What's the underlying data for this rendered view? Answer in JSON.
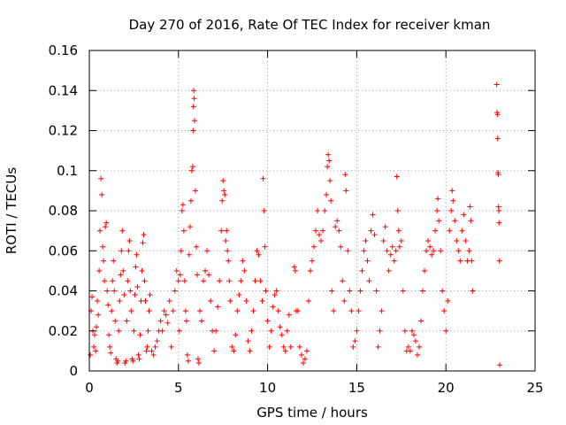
{
  "chart_data": {
    "type": "scatter",
    "title": "Day 270 of 2016, Rate Of TEC Index for receiver kman",
    "xlabel": "GPS time / hours",
    "ylabel": "ROTI / TECUs",
    "xlim": [
      0,
      25
    ],
    "ylim": [
      0,
      0.16
    ],
    "xticks": [
      0,
      5,
      10,
      15,
      20,
      25
    ],
    "xtick_labels": [
      "0",
      "5",
      "10",
      "15",
      "20",
      "25"
    ],
    "yticks": [
      0,
      0.02,
      0.04,
      0.06,
      0.08,
      0.1,
      0.12,
      0.14,
      0.16
    ],
    "ytick_labels": [
      "0",
      "0.02",
      "0.04",
      "0.06",
      "0.08",
      "0.1",
      "0.12",
      "0.14",
      "0.16"
    ],
    "grid": true,
    "marker": "plus",
    "color": "#ff0000",
    "series": [
      {
        "name": "ROTI",
        "points": [
          [
            0.05,
            0.008
          ],
          [
            0.1,
            0.03
          ],
          [
            0.15,
            0.037
          ],
          [
            0.2,
            0.02
          ],
          [
            0.25,
            0.012
          ],
          [
            0.3,
            0.018
          ],
          [
            0.35,
            0.01
          ],
          [
            0.4,
            0.022
          ],
          [
            0.45,
            0.035
          ],
          [
            0.5,
            0.028
          ],
          [
            0.55,
            0.05
          ],
          [
            0.6,
            0.07
          ],
          [
            0.65,
            0.096
          ],
          [
            0.7,
            0.088
          ],
          [
            0.75,
            0.062
          ],
          [
            0.8,
            0.055
          ],
          [
            0.85,
            0.045
          ],
          [
            0.9,
            0.072
          ],
          [
            0.95,
            0.074
          ],
          [
            1.0,
            0.04
          ],
          [
            1.05,
            0.033
          ],
          [
            1.1,
            0.018
          ],
          [
            1.15,
            0.012
          ],
          [
            1.2,
            0.009
          ],
          [
            1.25,
            0.03
          ],
          [
            1.3,
            0.045
          ],
          [
            1.35,
            0.055
          ],
          [
            1.4,
            0.04
          ],
          [
            1.45,
            0.025
          ],
          [
            1.5,
            0.006
          ],
          [
            1.55,
            0.004
          ],
          [
            1.6,
            0.005
          ],
          [
            1.65,
            0.02
          ],
          [
            1.7,
            0.035
          ],
          [
            1.75,
            0.048
          ],
          [
            1.8,
            0.06
          ],
          [
            1.85,
            0.07
          ],
          [
            1.9,
            0.05
          ],
          [
            1.95,
            0.038
          ],
          [
            2.0,
            0.004
          ],
          [
            2.05,
            0.005
          ],
          [
            2.1,
            0.025
          ],
          [
            2.15,
            0.045
          ],
          [
            2.2,
            0.06
          ],
          [
            2.25,
            0.065
          ],
          [
            2.3,
            0.04
          ],
          [
            2.35,
            0.03
          ],
          [
            2.4,
            0.006
          ],
          [
            2.45,
            0.005
          ],
          [
            2.5,
            0.02
          ],
          [
            2.55,
            0.038
          ],
          [
            2.6,
            0.052
          ],
          [
            2.65,
            0.058
          ],
          [
            2.7,
            0.042
          ],
          [
            2.75,
            0.008
          ],
          [
            2.8,
            0.006
          ],
          [
            2.85,
            0.018
          ],
          [
            2.9,
            0.035
          ],
          [
            2.95,
            0.05
          ],
          [
            3.0,
            0.064
          ],
          [
            3.05,
            0.068
          ],
          [
            3.1,
            0.045
          ],
          [
            3.15,
            0.035
          ],
          [
            3.2,
            0.01
          ],
          [
            3.25,
            0.012
          ],
          [
            3.3,
            0.02
          ],
          [
            3.35,
            0.03
          ],
          [
            3.4,
            0.038
          ],
          [
            3.5,
            0.01
          ],
          [
            3.6,
            0.008
          ],
          [
            3.7,
            0.012
          ],
          [
            3.8,
            0.015
          ],
          [
            3.9,
            0.02
          ],
          [
            4.0,
            0.025
          ],
          [
            4.1,
            0.02
          ],
          [
            4.2,
            0.03
          ],
          [
            4.3,
            0.028
          ],
          [
            4.4,
            0.024
          ],
          [
            4.5,
            0.035
          ],
          [
            4.6,
            0.012
          ],
          [
            4.7,
            0.03
          ],
          [
            4.8,
            0.04
          ],
          [
            4.9,
            0.05
          ],
          [
            5.0,
            0.045
          ],
          [
            5.05,
            0.02
          ],
          [
            5.1,
            0.048
          ],
          [
            5.15,
            0.06
          ],
          [
            5.2,
            0.08
          ],
          [
            5.25,
            0.083
          ],
          [
            5.3,
            0.07
          ],
          [
            5.35,
            0.045
          ],
          [
            5.4,
            0.03
          ],
          [
            5.45,
            0.025
          ],
          [
            5.5,
            0.008
          ],
          [
            5.55,
            0.005
          ],
          [
            5.6,
            0.058
          ],
          [
            5.65,
            0.072
          ],
          [
            5.7,
            0.085
          ],
          [
            5.75,
            0.1
          ],
          [
            5.8,
            0.102
          ],
          [
            5.82,
            0.12
          ],
          [
            5.84,
            0.132
          ],
          [
            5.86,
            0.14
          ],
          [
            5.88,
            0.136
          ],
          [
            5.9,
            0.125
          ],
          [
            5.95,
            0.09
          ],
          [
            6.0,
            0.062
          ],
          [
            6.05,
            0.048
          ],
          [
            6.1,
            0.006
          ],
          [
            6.15,
            0.004
          ],
          [
            6.2,
            0.03
          ],
          [
            6.3,
            0.025
          ],
          [
            6.4,
            0.045
          ],
          [
            6.5,
            0.05
          ],
          [
            6.6,
            0.06
          ],
          [
            6.7,
            0.048
          ],
          [
            6.8,
            0.035
          ],
          [
            6.9,
            0.02
          ],
          [
            7.0,
            0.01
          ],
          [
            7.1,
            0.02
          ],
          [
            7.2,
            0.032
          ],
          [
            7.3,
            0.045
          ],
          [
            7.4,
            0.07
          ],
          [
            7.45,
            0.085
          ],
          [
            7.5,
            0.095
          ],
          [
            7.55,
            0.09
          ],
          [
            7.6,
            0.088
          ],
          [
            7.65,
            0.065
          ],
          [
            7.7,
            0.07
          ],
          [
            7.75,
            0.06
          ],
          [
            7.8,
            0.055
          ],
          [
            7.85,
            0.045
          ],
          [
            7.9,
            0.035
          ],
          [
            8.0,
            0.012
          ],
          [
            8.1,
            0.01
          ],
          [
            8.2,
            0.018
          ],
          [
            8.3,
            0.03
          ],
          [
            8.4,
            0.038
          ],
          [
            8.5,
            0.045
          ],
          [
            8.6,
            0.055
          ],
          [
            8.7,
            0.05
          ],
          [
            8.8,
            0.035
          ],
          [
            8.9,
            0.015
          ],
          [
            9.0,
            0.01
          ],
          [
            9.1,
            0.02
          ],
          [
            9.2,
            0.03
          ],
          [
            9.3,
            0.045
          ],
          [
            9.4,
            0.06
          ],
          [
            9.5,
            0.058
          ],
          [
            9.6,
            0.045
          ],
          [
            9.7,
            0.035
          ],
          [
            9.75,
            0.096
          ],
          [
            9.8,
            0.08
          ],
          [
            9.85,
            0.062
          ],
          [
            9.9,
            0.04
          ],
          [
            10.0,
            0.025
          ],
          [
            10.1,
            0.012
          ],
          [
            10.2,
            0.02
          ],
          [
            10.3,
            0.032
          ],
          [
            10.4,
            0.038
          ],
          [
            10.5,
            0.04
          ],
          [
            10.6,
            0.03
          ],
          [
            10.7,
            0.022
          ],
          [
            10.8,
            0.018
          ],
          [
            10.9,
            0.012
          ],
          [
            11.0,
            0.01
          ],
          [
            11.1,
            0.02
          ],
          [
            11.2,
            0.028
          ],
          [
            11.3,
            0.012
          ],
          [
            11.5,
            0.052
          ],
          [
            11.55,
            0.05
          ],
          [
            11.6,
            0.03
          ],
          [
            11.7,
            0.03
          ],
          [
            11.8,
            0.012
          ],
          [
            11.9,
            0.008
          ],
          [
            12.0,
            0.004
          ],
          [
            12.1,
            0.006
          ],
          [
            12.2,
            0.01
          ],
          [
            12.3,
            0.035
          ],
          [
            12.4,
            0.05
          ],
          [
            12.5,
            0.055
          ],
          [
            12.6,
            0.062
          ],
          [
            12.7,
            0.07
          ],
          [
            12.8,
            0.08
          ],
          [
            12.9,
            0.068
          ],
          [
            13.0,
            0.065
          ],
          [
            13.1,
            0.07
          ],
          [
            13.2,
            0.08
          ],
          [
            13.3,
            0.088
          ],
          [
            13.35,
            0.102
          ],
          [
            13.4,
            0.108
          ],
          [
            13.45,
            0.105
          ],
          [
            13.5,
            0.095
          ],
          [
            13.55,
            0.085
          ],
          [
            13.6,
            0.04
          ],
          [
            13.7,
            0.03
          ],
          [
            13.8,
            0.072
          ],
          [
            13.9,
            0.075
          ],
          [
            14.0,
            0.07
          ],
          [
            14.1,
            0.062
          ],
          [
            14.2,
            0.045
          ],
          [
            14.3,
            0.035
          ],
          [
            14.35,
            0.098
          ],
          [
            14.4,
            0.09
          ],
          [
            14.5,
            0.06
          ],
          [
            14.6,
            0.04
          ],
          [
            14.7,
            0.03
          ],
          [
            14.8,
            0.012
          ],
          [
            14.9,
            0.015
          ],
          [
            15.0,
            0.02
          ],
          [
            15.1,
            0.03
          ],
          [
            15.2,
            0.04
          ],
          [
            15.3,
            0.05
          ],
          [
            15.4,
            0.06
          ],
          [
            15.5,
            0.065
          ],
          [
            15.6,
            0.055
          ],
          [
            15.7,
            0.045
          ],
          [
            15.8,
            0.07
          ],
          [
            15.9,
            0.078
          ],
          [
            16.0,
            0.068
          ],
          [
            16.1,
            0.04
          ],
          [
            16.2,
            0.012
          ],
          [
            16.3,
            0.02
          ],
          [
            16.4,
            0.03
          ],
          [
            16.5,
            0.065
          ],
          [
            16.6,
            0.072
          ],
          [
            16.7,
            0.06
          ],
          [
            16.8,
            0.05
          ],
          [
            16.9,
            0.058
          ],
          [
            17.0,
            0.062
          ],
          [
            17.1,
            0.055
          ],
          [
            17.2,
            0.06
          ],
          [
            17.25,
            0.097
          ],
          [
            17.3,
            0.08
          ],
          [
            17.35,
            0.07
          ],
          [
            17.4,
            0.062
          ],
          [
            17.5,
            0.065
          ],
          [
            17.6,
            0.04
          ],
          [
            17.7,
            0.02
          ],
          [
            17.8,
            0.01
          ],
          [
            17.9,
            0.012
          ],
          [
            18.0,
            0.01
          ],
          [
            18.1,
            0.02
          ],
          [
            18.2,
            0.018
          ],
          [
            18.3,
            0.015
          ],
          [
            18.4,
            0.008
          ],
          [
            18.5,
            0.012
          ],
          [
            18.6,
            0.025
          ],
          [
            18.7,
            0.04
          ],
          [
            18.8,
            0.05
          ],
          [
            18.9,
            0.06
          ],
          [
            19.0,
            0.065
          ],
          [
            19.1,
            0.062
          ],
          [
            19.2,
            0.058
          ],
          [
            19.3,
            0.06
          ],
          [
            19.4,
            0.07
          ],
          [
            19.5,
            0.08
          ],
          [
            19.55,
            0.086
          ],
          [
            19.6,
            0.075
          ],
          [
            19.7,
            0.06
          ],
          [
            19.8,
            0.04
          ],
          [
            19.9,
            0.03
          ],
          [
            20.0,
            0.02
          ],
          [
            20.1,
            0.035
          ],
          [
            20.2,
            0.07
          ],
          [
            20.3,
            0.08
          ],
          [
            20.35,
            0.09
          ],
          [
            20.4,
            0.085
          ],
          [
            20.5,
            0.075
          ],
          [
            20.6,
            0.065
          ],
          [
            20.7,
            0.06
          ],
          [
            20.8,
            0.055
          ],
          [
            20.9,
            0.07
          ],
          [
            21.0,
            0.078
          ],
          [
            21.1,
            0.065
          ],
          [
            21.2,
            0.055
          ],
          [
            21.3,
            0.06
          ],
          [
            21.35,
            0.082
          ],
          [
            21.4,
            0.075
          ],
          [
            21.45,
            0.055
          ],
          [
            21.5,
            0.04
          ],
          [
            22.85,
            0.143
          ],
          [
            22.87,
            0.129
          ],
          [
            22.89,
            0.128
          ],
          [
            22.9,
            0.116
          ],
          [
            22.92,
            0.099
          ],
          [
            22.94,
            0.098
          ],
          [
            22.95,
            0.082
          ],
          [
            22.97,
            0.08
          ],
          [
            22.98,
            0.074
          ],
          [
            23.0,
            0.055
          ],
          [
            23.02,
            0.003
          ]
        ]
      }
    ]
  }
}
